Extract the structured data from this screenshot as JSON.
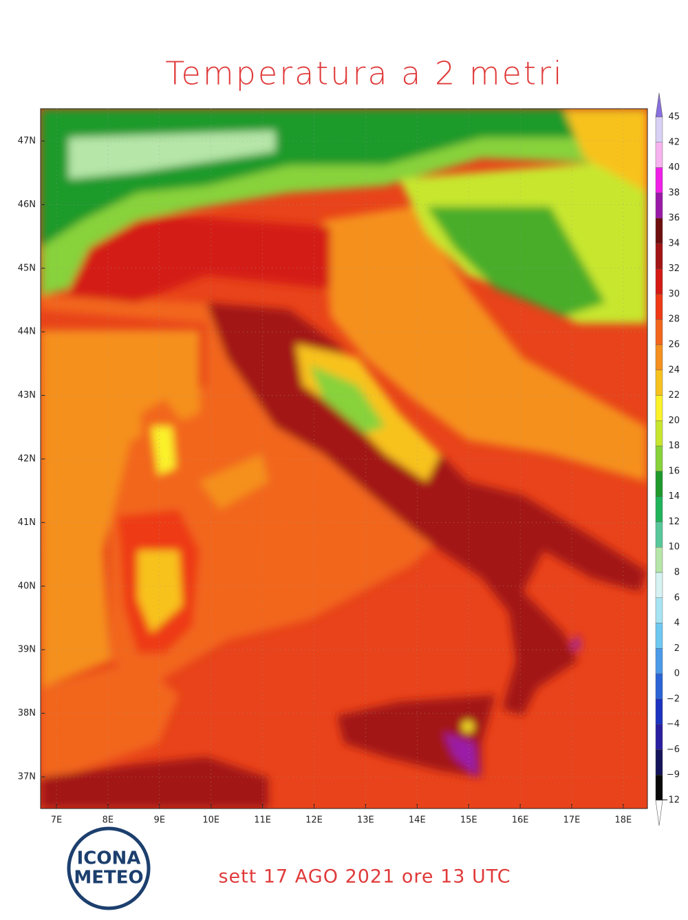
{
  "title": "Temperatura a 2 metri",
  "subtitle": "sett 17 AGO 2021 ore 13 UTC",
  "logo": {
    "line1": "ICONA",
    "line2": "METEO"
  },
  "map": {
    "lat_labels": [
      "47N",
      "46N",
      "45N",
      "44N",
      "43N",
      "42N",
      "41N",
      "40N",
      "39N",
      "38N",
      "37N"
    ],
    "lon_labels": [
      "7E",
      "8E",
      "9E",
      "10E",
      "11E",
      "12E",
      "13E",
      "14E",
      "15E",
      "16E",
      "17E",
      "18E"
    ]
  },
  "colorbar": {
    "labels": [
      "45",
      "42",
      "40",
      "38",
      "36",
      "34",
      "32",
      "30",
      "28",
      "26",
      "24",
      "22",
      "20",
      "18",
      "16",
      "14",
      "12",
      "10",
      "8",
      "6",
      "4",
      "2",
      "0",
      "−2",
      "−4",
      "−6",
      "−9",
      "−12"
    ],
    "colors": [
      "#8a6fe0",
      "#d8d0f5",
      "#f7b3f0",
      "#f020e8",
      "#9a1aa8",
      "#6e0f0f",
      "#a31414",
      "#d41a14",
      "#ee3a16",
      "#f2661c",
      "#f5901e",
      "#f8c21e",
      "#fbf22a",
      "#c8e62e",
      "#88d23a",
      "#1e9a2c",
      "#20b45a",
      "#58c89a",
      "#b6e6a8",
      "#d6f2f2",
      "#a6e4f4",
      "#6ec8f0",
      "#4a9ae8",
      "#2a64d6",
      "#1c32c0",
      "#2a1ea0",
      "#14145a",
      "#0a0a0a",
      "#ffffff"
    ]
  }
}
